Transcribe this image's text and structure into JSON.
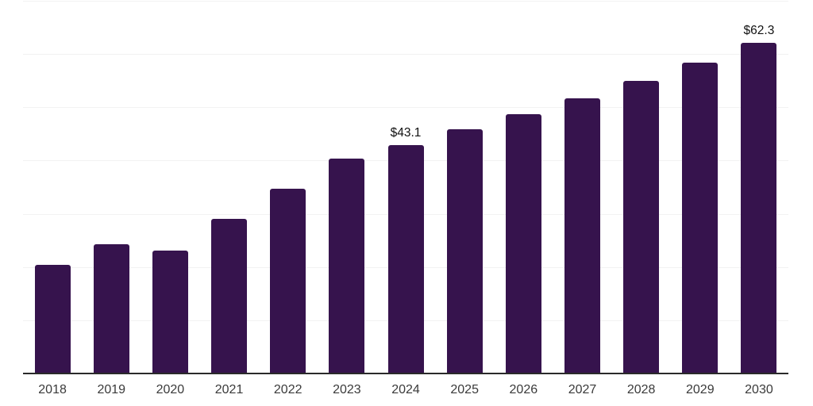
{
  "chart_data": {
    "type": "bar",
    "title": "",
    "xlabel": "",
    "ylabel": "",
    "categories": [
      "2018",
      "2019",
      "2020",
      "2021",
      "2022",
      "2023",
      "2024",
      "2025",
      "2026",
      "2027",
      "2028",
      "2029",
      "2030"
    ],
    "values": [
      20.6,
      24.5,
      23.3,
      29.2,
      34.8,
      40.5,
      43.1,
      46.0,
      48.8,
      51.9,
      55.1,
      58.6,
      62.3
    ],
    "value_prefix": "$",
    "data_labels": [
      {
        "category": "2024",
        "text": "$43.1"
      },
      {
        "category": "2030",
        "text": "$62.3"
      }
    ],
    "ylim": [
      0,
      70
    ],
    "gridline_step": 10,
    "grid": "horizontal",
    "legend": "none",
    "y_axis_labels_visible": false,
    "colors": {
      "bar": "#36134d",
      "gridline": "#f2f2f2",
      "axis_line": "#2a2a2a",
      "tick_label": "#3a3a3a",
      "data_label": "#111111",
      "background": "#ffffff"
    }
  }
}
